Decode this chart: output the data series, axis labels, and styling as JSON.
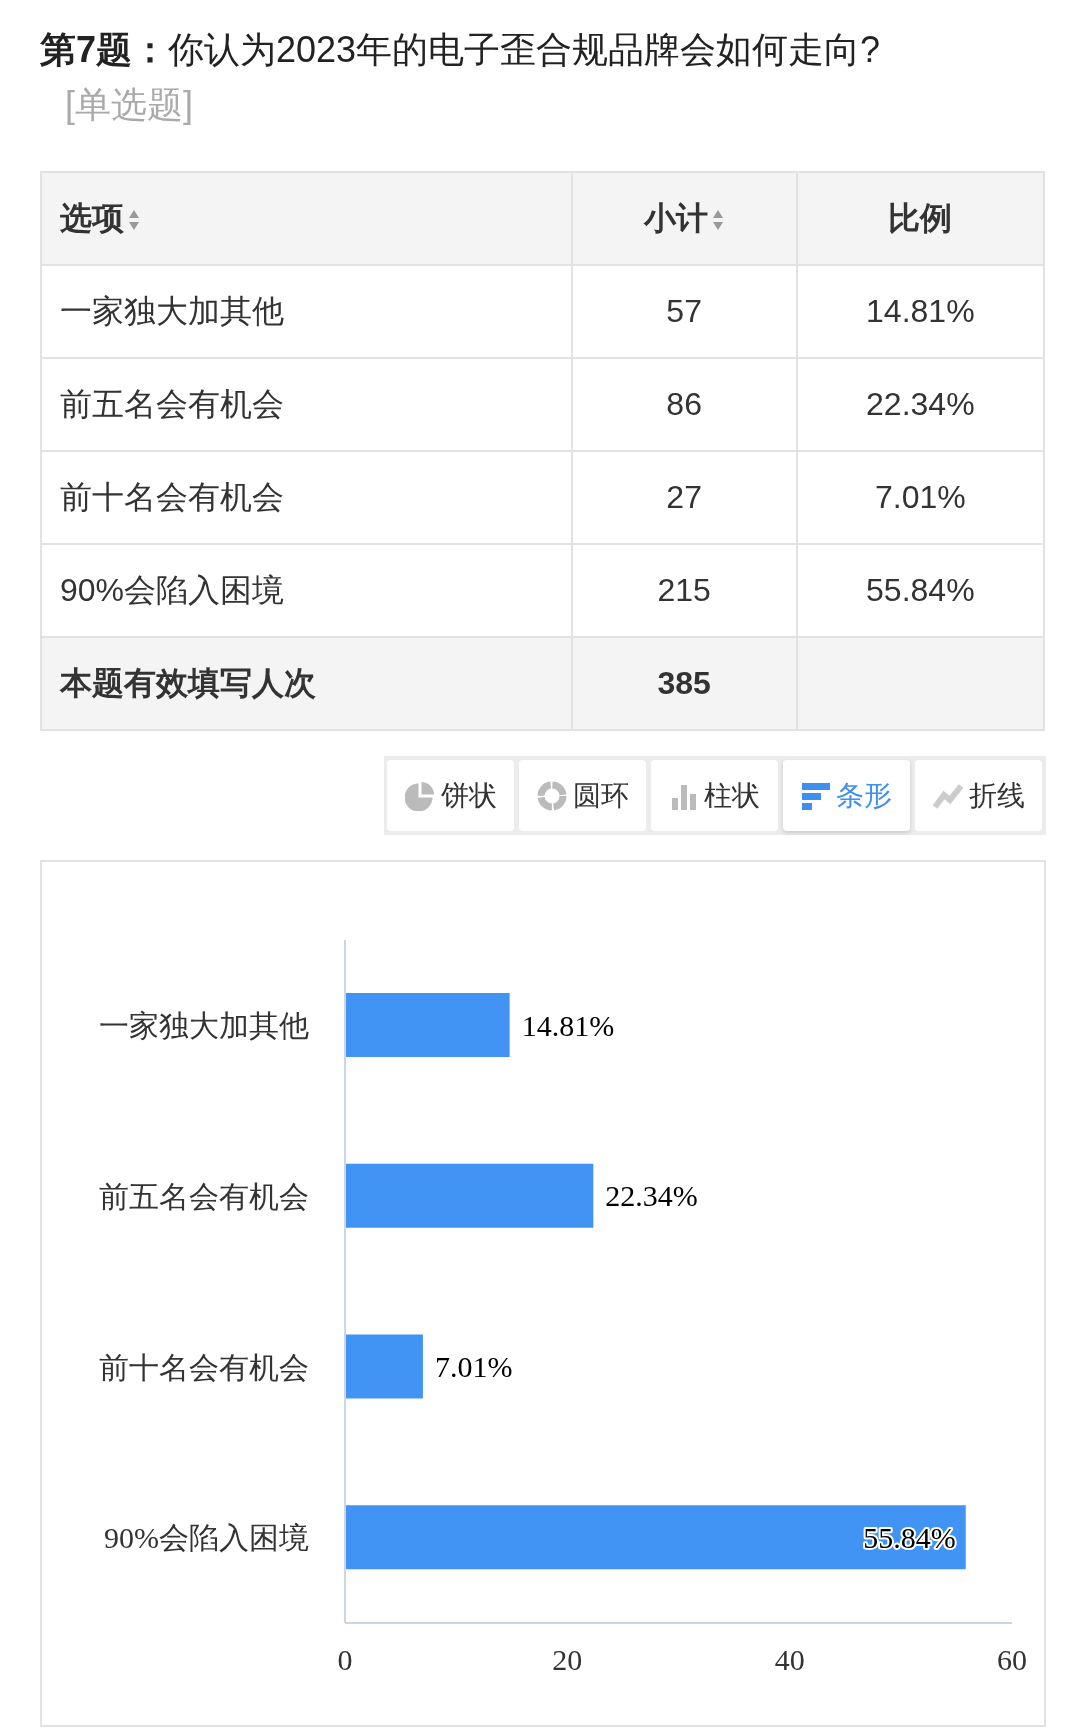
{
  "chart_data": [
    {
      "type": "other",
      "title": "第7题：你认为2023年的电子歪合规品牌会如何走向?",
      "subtitle": "[单选题]",
      "annotations": [
        "选项",
        "小计",
        "比例",
        "一家独大加其他",
        "57",
        "14.81%",
        "前五名会有机会",
        "86",
        "22.34%",
        "前十名会有机会",
        "27",
        "7.01%",
        "90%会陷入困境",
        "215",
        "55.84%",
        "本题有效填写人次",
        "385"
      ]
    },
    {
      "type": "bar",
      "orientation": "horizontal",
      "categories": [
        "一家独大加其他",
        "前五名会有机会",
        "前十名会有机会",
        "90%会陷入困境"
      ],
      "values": [
        14.81,
        22.34,
        7.01,
        55.84
      ],
      "color": "#4193f4",
      "value_labels": [
        "14.81%",
        "22.34%",
        "7.01%",
        "55.84%"
      ],
      "xlim": [
        0,
        60
      ],
      "xticks": [
        0,
        20,
        40,
        60
      ],
      "annotations": [
        "饼状",
        "圆环",
        "柱状",
        "条形",
        "折线"
      ]
    }
  ]
}
